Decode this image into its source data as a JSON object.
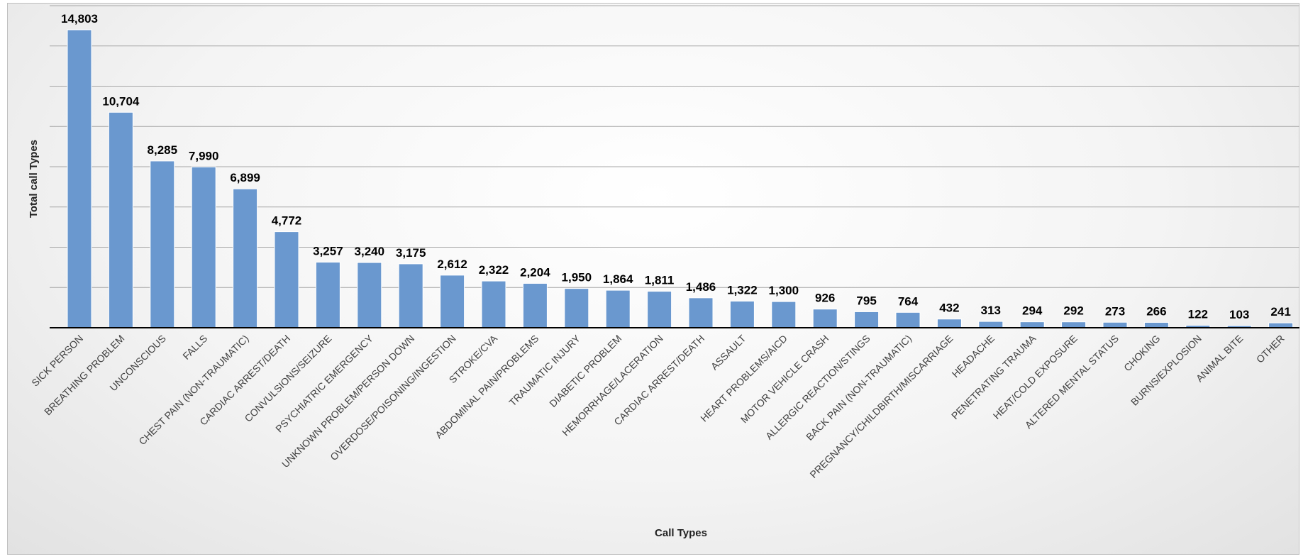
{
  "chart_data": {
    "type": "bar",
    "title": "",
    "xlabel": "Call Types",
    "ylabel": "Total call Types",
    "ylim": [
      0,
      16000
    ],
    "grid": true,
    "legend": "none",
    "bar_color": "#6a98cf",
    "categories": [
      "SICK PERSON",
      "BREATHING PROBLEM",
      "UNCONSCIOUS",
      "FALLS",
      "CHEST PAIN (NON-TRAUMATIC)",
      "CARDIAC ARREST/DEATH",
      "CONVULSIONS/SEIZURE",
      "PSYCHIATRIC EMERGENCY",
      "UNKNOWN PROBLEM/PERSON DOWN",
      "OVERDOSE/POISONING/INGESTION",
      "STROKE/CVA",
      "ABDOMINAL PAIN/PROBLEMS",
      "TRAUMATIC INJURY",
      "DIABETIC PROBLEM",
      "HEMORRHAGE/LACERATION",
      "CARDIAC ARREST/DEATH",
      "ASSAULT",
      "HEART PROBLEMS/AICD",
      "MOTOR VEHICLE CRASH",
      "ALLERGIC REACTION/STINGS",
      "BACK PAIN (NON-TRAUMATIC)",
      "PREGNANCY/CHILDBIRTH/MISCARRIAGE",
      "HEADACHE",
      "PENETRATING TRAUMA",
      "HEAT/COLD EXPOSURE",
      "ALTERED MENTAL STATUS",
      "CHOKING",
      "BURNS/EXPLOSION",
      "ANIMAL BITE",
      "OTHER"
    ],
    "values": [
      14803,
      10704,
      8285,
      7990,
      6899,
      4772,
      3257,
      3240,
      3175,
      2612,
      2322,
      2204,
      1950,
      1864,
      1811,
      1486,
      1322,
      1300,
      926,
      795,
      764,
      432,
      313,
      294,
      292,
      273,
      266,
      122,
      103,
      241
    ],
    "data_labels": [
      "14,803",
      "10,704",
      "8,285",
      "7,990",
      "6,899",
      "4,772",
      "3,257",
      "3,240",
      "3,175",
      "2,612",
      "2,322",
      "2,204",
      "1,950",
      "1,864",
      "1,811",
      "1,486",
      "1,322",
      "1,300",
      "926",
      "795",
      "764",
      "432",
      "313",
      "294",
      "292",
      "273",
      "266",
      "122",
      "103",
      "241"
    ]
  }
}
